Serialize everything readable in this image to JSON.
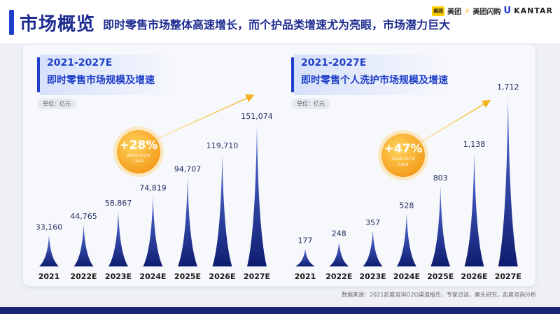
{
  "header": {
    "title": "市场概览",
    "subtitle": "即时零售市场整体高速增长，而个护品类增速尤为亮眼，市场潜力巨大"
  },
  "logos": {
    "meituan_box": "美团",
    "meituan": "美团",
    "shangou": "美团闪购",
    "unilever": "U",
    "kantar": "KANTAR"
  },
  "left_panel": {
    "year_range": "2021-2027E",
    "title": "即时零售市场规模及增速",
    "unit": "单位：亿元",
    "badge": {
      "pct": "+28%",
      "range": "2022E-2027E",
      "label": "CAGR"
    }
  },
  "right_panel": {
    "year_range": "2021-2027E",
    "title": "即时零售个人洗护市场规模及增速",
    "unit": "单位：亿元",
    "badge": {
      "pct": "+47%",
      "range": "2022E-2027E",
      "label": "CAGR"
    }
  },
  "chart_data": [
    {
      "type": "bar",
      "title": "即时零售市场规模及增速",
      "unit": "亿元",
      "categories": [
        "2021",
        "2022E",
        "2023E",
        "2024E",
        "2025E",
        "2026E",
        "2027E"
      ],
      "values": [
        33160,
        44765,
        58867,
        74819,
        94707,
        119710,
        151074
      ],
      "value_labels": [
        "33,160",
        "44,765",
        "58,867",
        "74,819",
        "94,707",
        "119,710",
        "151,074"
      ],
      "annotation": {
        "cagr": "+28%",
        "period": "2022E-2027E"
      },
      "colors": {
        "bar_top": "#1f3fc8",
        "bar_bottom": "#0f1d6e"
      }
    },
    {
      "type": "bar",
      "title": "即时零售个人洗护市场规模及增速",
      "unit": "亿元",
      "categories": [
        "2021",
        "2022E",
        "2023E",
        "2024E",
        "2025E",
        "2026E",
        "2027E"
      ],
      "values": [
        177,
        248,
        357,
        528,
        803,
        1138,
        1712
      ],
      "value_labels": [
        "177",
        "248",
        "357",
        "528",
        "803",
        "1,138",
        "1,712"
      ],
      "annotation": {
        "cagr": "+47%",
        "period": "2022E-2027E"
      },
      "colors": {
        "bar_top": "#1f3fc8",
        "bar_bottom": "#0f1d6e"
      }
    }
  ],
  "footer": {
    "source": "数据来源：2021凯度咨询O2O渠道报告，专家访谈，案头研究，凯度咨询分析"
  }
}
